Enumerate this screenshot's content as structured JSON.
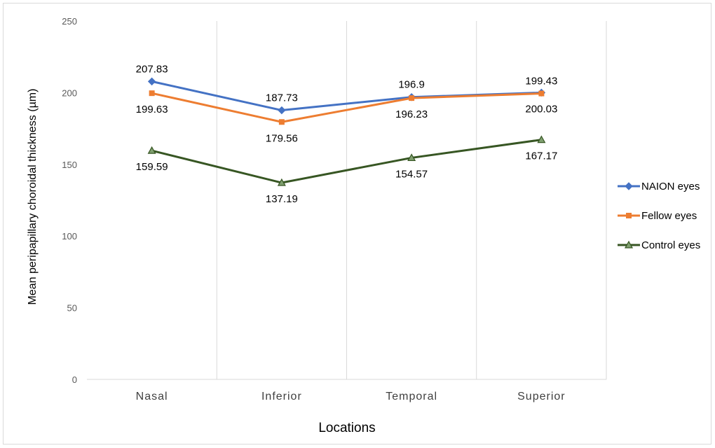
{
  "chart_data": {
    "type": "line",
    "xlabel": "Locations",
    "ylabel": "Mean peripapillary choroidal thickness (µm)",
    "categories": [
      "Nasal",
      "Inferior",
      "Temporal",
      "Superior"
    ],
    "ylim": [
      0,
      250
    ],
    "yticks": [
      "0",
      "50",
      "100",
      "150",
      "200",
      "250"
    ],
    "grid": "vertical",
    "legend_position": "right",
    "series": [
      {
        "name": "NAION eyes",
        "color": "#4472C4",
        "marker": "diamond",
        "values": [
          207.83,
          187.73,
          196.9,
          200.03
        ],
        "labels": [
          "207.83",
          "187.73",
          "196.9",
          "200.03"
        ]
      },
      {
        "name": "Fellow eyes",
        "color": "#ED7D31",
        "marker": "square",
        "values": [
          199.63,
          179.56,
          196.23,
          199.43
        ],
        "labels": [
          "199.63",
          "179.56",
          "196.23",
          "199.43"
        ]
      },
      {
        "name": "Control eyes",
        "color": "#375623",
        "marker": "triangle",
        "values": [
          159.59,
          137.19,
          154.57,
          167.17
        ],
        "labels": [
          "159.59",
          "137.19",
          "154.57",
          "167.17"
        ]
      }
    ]
  }
}
